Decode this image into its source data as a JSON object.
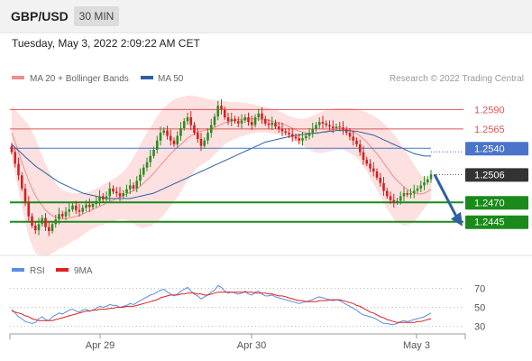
{
  "header": {
    "symbol": "GBP/USD",
    "timeframe": "30 MIN",
    "timestamp": "Tuesday, May 3, 2022 2:09:22 AM CET"
  },
  "colors": {
    "bullish": "#2e8b22",
    "bearish": "#d61f1f",
    "ma20": "#f28c8c",
    "bollinger_fill": "#fde0e0",
    "ma50": "#2e5fa3",
    "resistance": "#e05555",
    "pivot": "#4a74c9",
    "support": "#1a8a1a",
    "price_tag": "#333333",
    "forecast_arrow": "#2e5fa3",
    "rsi": "#5b8de0",
    "rsi_ma": "#e02020"
  },
  "chart_data": [
    {
      "type": "candlestick",
      "legend": [
        {
          "label": "MA 20 + Bollinger Bands",
          "color": "#f28c8c"
        },
        {
          "label": "MA 50",
          "color": "#2e5fa3"
        }
      ],
      "copyright": "Research © 2022 Trading Central",
      "ylim": [
        1.2405,
        1.2615
      ],
      "x_ticks": [
        "Apr 29",
        "Apr 30",
        "May 3"
      ],
      "levels": [
        {
          "label": "1.2590",
          "value": 1.259,
          "kind": "resistance"
        },
        {
          "label": "1.2565",
          "value": 1.2565,
          "kind": "resistance"
        },
        {
          "label": "1.2540",
          "value": 1.254,
          "kind": "pivot"
        },
        {
          "label": "1.2506",
          "value": 1.2506,
          "kind": "last"
        },
        {
          "label": "1.2470",
          "value": 1.247,
          "kind": "support"
        },
        {
          "label": "1.2445",
          "value": 1.2445,
          "kind": "support"
        }
      ],
      "close": [
        1.2535,
        1.252,
        1.2505,
        1.2488,
        1.247,
        1.2452,
        1.244,
        1.2434,
        1.2442,
        1.245,
        1.2438,
        1.2433,
        1.2442,
        1.2448,
        1.2455,
        1.2452,
        1.2458,
        1.2461,
        1.2466,
        1.246,
        1.2458,
        1.2463,
        1.2467,
        1.2464,
        1.2468,
        1.2472,
        1.2478,
        1.2474,
        1.2478,
        1.2488,
        1.2484,
        1.2482,
        1.2478,
        1.2482,
        1.2487,
        1.2492,
        1.2488,
        1.2498,
        1.2506,
        1.2515,
        1.2522,
        1.253,
        1.2538,
        1.255,
        1.256,
        1.2563,
        1.2556,
        1.255,
        1.2545,
        1.2556,
        1.2566,
        1.2575,
        1.258,
        1.257,
        1.256,
        1.2552,
        1.2543,
        1.255,
        1.256,
        1.257,
        1.2581,
        1.2595,
        1.259,
        1.258,
        1.2575,
        1.2578,
        1.2575,
        1.2572,
        1.2576,
        1.258,
        1.2574,
        1.257,
        1.258,
        1.2585,
        1.2578,
        1.2572,
        1.257,
        1.2573,
        1.2568,
        1.2565,
        1.2562,
        1.256,
        1.2558,
        1.2555,
        1.2553,
        1.255,
        1.2553,
        1.2556,
        1.256,
        1.2565,
        1.257,
        1.2574,
        1.2572,
        1.257,
        1.2568,
        1.2566,
        1.2568,
        1.2567,
        1.2564,
        1.256,
        1.2555,
        1.255,
        1.2545,
        1.2535,
        1.2525,
        1.252,
        1.2514,
        1.251,
        1.2502,
        1.2495,
        1.2485,
        1.2478,
        1.2473,
        1.247,
        1.2472,
        1.2478,
        1.2482,
        1.248,
        1.2482,
        1.2485,
        1.2488,
        1.2492,
        1.2496,
        1.25,
        1.2506
      ],
      "ma20": [
        1.256,
        1.2548,
        1.2535,
        1.2522,
        1.251,
        1.2498,
        1.2488,
        1.2479,
        1.2472,
        1.2466,
        1.246,
        1.2456,
        1.2453,
        1.2451,
        1.245,
        1.2449,
        1.2449,
        1.245,
        1.2451,
        1.2452,
        1.2453,
        1.2455,
        1.2457,
        1.2459,
        1.2461,
        1.2463,
        1.2465,
        1.2467,
        1.2469,
        1.2471,
        1.2473,
        1.2475,
        1.2477,
        1.2479,
        1.2481,
        1.2483,
        1.2485,
        1.2488,
        1.2491,
        1.2495,
        1.2499,
        1.2503,
        1.2508,
        1.2513,
        1.2518,
        1.2523,
        1.2528,
        1.2533,
        1.2537,
        1.2541,
        1.2545,
        1.2549,
        1.2553,
        1.2556,
        1.2559,
        1.2561,
        1.2562,
        1.2563,
        1.2564,
        1.2565,
        1.2567,
        1.2569,
        1.2571,
        1.2573,
        1.2574,
        1.2575,
        1.2576,
        1.2577,
        1.2577,
        1.2578,
        1.2578,
        1.2578,
        1.2578,
        1.2578,
        1.2577,
        1.2577,
        1.2576,
        1.2575,
        1.2574,
        1.2573,
        1.2572,
        1.257,
        1.2568,
        1.2566,
        1.2564,
        1.2562,
        1.2561,
        1.256,
        1.2559,
        1.2559,
        1.2559,
        1.256,
        1.2561,
        1.2562,
        1.2563,
        1.2564,
        1.2565,
        1.2565,
        1.2565,
        1.2564,
        1.2563,
        1.2561,
        1.2559,
        1.2556,
        1.2552,
        1.2548,
        1.2543,
        1.2538,
        1.2533,
        1.2527,
        1.2521,
        1.2515,
        1.2509,
        1.2503,
        1.2498,
        1.2494,
        1.249,
        1.2487,
        1.2484,
        1.2482,
        1.2481,
        1.2481,
        1.2482,
        1.2484,
        1.2487
      ],
      "bb_upper": [
        1.2595,
        1.259,
        1.2585,
        1.258,
        1.2575,
        1.257,
        1.2562,
        1.2553,
        1.2542,
        1.253,
        1.252,
        1.251,
        1.2502,
        1.2495,
        1.249,
        1.2486,
        1.2484,
        1.2483,
        1.2482,
        1.2482,
        1.2482,
        1.2482,
        1.2483,
        1.2484,
        1.2486,
        1.2488,
        1.249,
        1.2493,
        1.2495,
        1.2498,
        1.25,
        1.2503,
        1.2506,
        1.251,
        1.2515,
        1.2521,
        1.2528,
        1.2536,
        1.2545,
        1.2553,
        1.256,
        1.2567,
        1.2574,
        1.2581,
        1.2587,
        1.2592,
        1.2596,
        1.26,
        1.2603,
        1.2605,
        1.2606,
        1.2607,
        1.2608,
        1.2608,
        1.2608,
        1.2607,
        1.2606,
        1.2605,
        1.2604,
        1.2603,
        1.2602,
        1.2602,
        1.2601,
        1.2601,
        1.26,
        1.26,
        1.26,
        1.26,
        1.2599,
        1.2599,
        1.2598,
        1.2597,
        1.2596,
        1.2595,
        1.2594,
        1.2593,
        1.2592,
        1.2591,
        1.259,
        1.2588,
        1.2586,
        1.2584,
        1.2582,
        1.258,
        1.2579,
        1.2578,
        1.2578,
        1.2579,
        1.258,
        1.2582,
        1.2584,
        1.2586,
        1.2588,
        1.2589,
        1.259,
        1.2591,
        1.2592,
        1.2592,
        1.2592,
        1.2592,
        1.2592,
        1.2591,
        1.259,
        1.2589,
        1.2588,
        1.2586,
        1.2584,
        1.2582,
        1.2579,
        1.2576,
        1.2572,
        1.2568,
        1.2563,
        1.2558,
        1.2552,
        1.2546,
        1.254,
        1.2533,
        1.2526,
        1.2519,
        1.2512,
        1.2506,
        1.2502,
        1.25,
        1.25
      ],
      "bb_lower": [
        1.2525,
        1.2506,
        1.2485,
        1.2464,
        1.2445,
        1.2426,
        1.2414,
        1.2405,
        1.2402,
        1.2402,
        1.24,
        1.2402,
        1.2404,
        1.2407,
        1.241,
        1.2412,
        1.2414,
        1.2417,
        1.242,
        1.2422,
        1.2424,
        1.2428,
        1.2431,
        1.2434,
        1.2436,
        1.2438,
        1.244,
        1.2441,
        1.2443,
        1.2444,
        1.2446,
        1.2447,
        1.2448,
        1.2448,
        1.2447,
        1.2445,
        1.2442,
        1.244,
        1.2437,
        1.2437,
        1.2438,
        1.2439,
        1.2442,
        1.2445,
        1.2449,
        1.2454,
        1.246,
        1.2466,
        1.2471,
        1.2477,
        1.2484,
        1.2491,
        1.2498,
        1.2504,
        1.251,
        1.2515,
        1.2518,
        1.2521,
        1.2524,
        1.2527,
        1.2532,
        1.2536,
        1.2541,
        1.2545,
        1.2548,
        1.255,
        1.2552,
        1.2554,
        1.2555,
        1.2557,
        1.2558,
        1.2559,
        1.256,
        1.2561,
        1.256,
        1.2561,
        1.256,
        1.2559,
        1.2558,
        1.2558,
        1.2558,
        1.2556,
        1.2554,
        1.2552,
        1.2549,
        1.2546,
        1.2544,
        1.2541,
        1.2538,
        1.2536,
        1.2534,
        1.2534,
        1.2534,
        1.2535,
        1.2536,
        1.2537,
        1.2538,
        1.2538,
        1.2538,
        1.2536,
        1.2534,
        1.2531,
        1.2528,
        1.2523,
        1.2516,
        1.251,
        1.2502,
        1.2494,
        1.2487,
        1.2478,
        1.247,
        1.2462,
        1.2455,
        1.2448,
        1.2444,
        1.2442,
        1.244,
        1.2441,
        1.2442,
        1.2445,
        1.245,
        1.2456,
        1.2462,
        1.2468,
        1.2474
      ],
      "ma50": [
        1.2545,
        1.2541,
        1.2537,
        1.2533,
        1.2529,
        1.2525,
        1.2521,
        1.2517,
        1.2514,
        1.2511,
        1.2508,
        1.2505,
        1.2502,
        1.2499,
        1.2496,
        1.2494,
        1.2492,
        1.249,
        1.2488,
        1.2486,
        1.2484,
        1.2482,
        1.2481,
        1.248,
        1.2479,
        1.2478,
        1.2477,
        1.2476,
        1.2475,
        1.2475,
        1.2475,
        1.2475,
        1.2475,
        1.2475,
        1.2475,
        1.2475,
        1.2476,
        1.2477,
        1.2478,
        1.2479,
        1.248,
        1.2481,
        1.2482,
        1.2484,
        1.2486,
        1.2488,
        1.249,
        1.2492,
        1.2494,
        1.2496,
        1.2498,
        1.25,
        1.2502,
        1.2504,
        1.2506,
        1.2508,
        1.251,
        1.2512,
        1.2514,
        1.2516,
        1.2518,
        1.252,
        1.2522,
        1.2524,
        1.2526,
        1.2528,
        1.253,
        1.2532,
        1.2534,
        1.2536,
        1.2538,
        1.254,
        1.2542,
        1.2544,
        1.2546,
        1.2548,
        1.2549,
        1.255,
        1.2551,
        1.2552,
        1.2553,
        1.2554,
        1.2555,
        1.2556,
        1.2557,
        1.2557,
        1.2558,
        1.2558,
        1.2559,
        1.2559,
        1.256,
        1.256,
        1.2561,
        1.2561,
        1.2562,
        1.2562,
        1.2563,
        1.2563,
        1.2563,
        1.2563,
        1.2563,
        1.2562,
        1.2562,
        1.2561,
        1.256,
        1.2559,
        1.2558,
        1.2557,
        1.2555,
        1.2553,
        1.2551,
        1.2549,
        1.2547,
        1.2545,
        1.2543,
        1.2541,
        1.2539,
        1.2537,
        1.2535,
        1.2533,
        1.2532,
        1.2531,
        1.253,
        1.253,
        1.253
      ],
      "forecast": {
        "from": 1.2506,
        "to": 1.2445
      }
    },
    {
      "type": "line",
      "legend": [
        {
          "label": "RSI",
          "color": "#5b8de0"
        },
        {
          "label": "9MA",
          "color": "#e02020"
        }
      ],
      "ylim": [
        20,
        80
      ],
      "y_ticks": [
        "70",
        "50",
        "30"
      ],
      "reference_lines": [
        70,
        50,
        30
      ],
      "rsi": [
        48,
        44,
        40,
        38,
        35,
        34,
        33,
        34,
        38,
        40,
        37,
        36,
        40,
        42,
        44,
        43,
        45,
        47,
        48,
        46,
        45,
        47,
        48,
        46,
        47,
        49,
        51,
        50,
        51,
        53,
        52,
        52,
        50,
        51,
        52,
        54,
        53,
        55,
        57,
        59,
        61,
        63,
        64,
        66,
        68,
        69,
        66,
        64,
        62,
        64,
        67,
        69,
        71,
        67,
        64,
        62,
        59,
        61,
        63,
        66,
        68,
        73,
        71,
        67,
        65,
        66,
        65,
        64,
        65,
        67,
        64,
        63,
        66,
        67,
        64,
        62,
        62,
        63,
        61,
        60,
        59,
        58,
        57,
        56,
        55,
        54,
        55,
        56,
        57,
        58,
        60,
        61,
        60,
        59,
        58,
        57,
        58,
        57,
        55,
        53,
        51,
        49,
        47,
        44,
        42,
        41,
        40,
        39,
        37,
        35,
        33,
        33,
        32,
        32,
        33,
        35,
        36,
        35,
        36,
        37,
        38,
        39,
        40,
        42,
        44
      ],
      "ma9": [
        46,
        45,
        44,
        43,
        41,
        40,
        38,
        37,
        36,
        36,
        36,
        36,
        36,
        37,
        38,
        39,
        40,
        41,
        42,
        43,
        44,
        45,
        46,
        46,
        47,
        47,
        48,
        48,
        48,
        49,
        49,
        50,
        50,
        50,
        51,
        51,
        51,
        52,
        53,
        54,
        55,
        56,
        57,
        58,
        60,
        61,
        62,
        63,
        63,
        63,
        64,
        64,
        65,
        65,
        65,
        64,
        64,
        63,
        63,
        64,
        65,
        66,
        66,
        66,
        66,
        66,
        66,
        66,
        66,
        66,
        66,
        66,
        65,
        65,
        65,
        65,
        64,
        64,
        63,
        62,
        62,
        61,
        60,
        59,
        58,
        57,
        57,
        56,
        56,
        56,
        56,
        57,
        57,
        57,
        58,
        58,
        58,
        58,
        57,
        56,
        55,
        54,
        52,
        51,
        49,
        47,
        45,
        44,
        42,
        40,
        39,
        37,
        36,
        35,
        34,
        34,
        34,
        34,
        34,
        34,
        35,
        35,
        36,
        37,
        38
      ]
    }
  ]
}
